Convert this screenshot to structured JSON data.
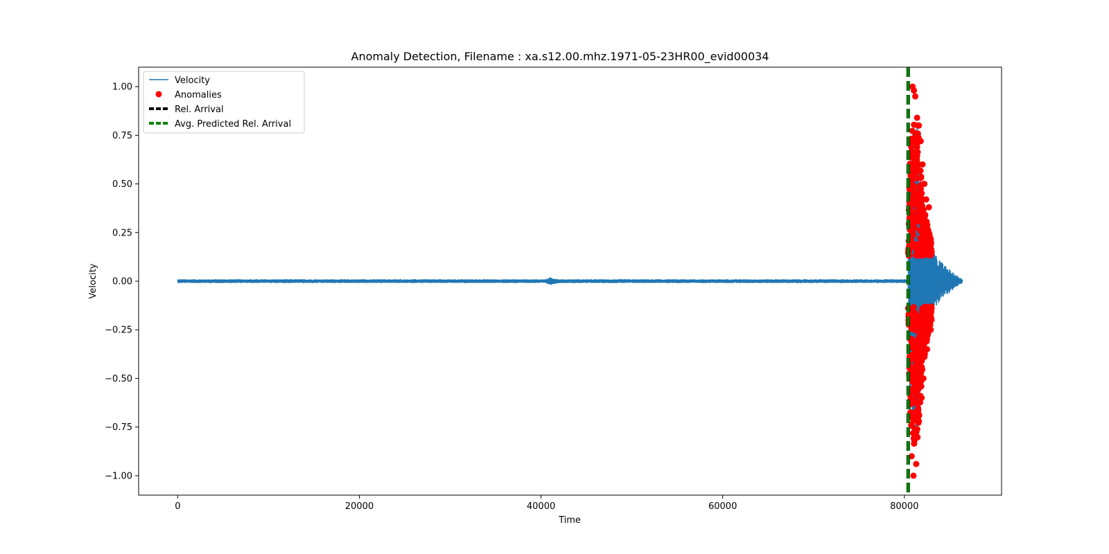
{
  "chart_data": {
    "type": "line",
    "title": "Anomaly Detection, Filename : xa.s12.00.mhz.1971-05-23HR00_evid00034",
    "xlabel": "Time",
    "ylabel": "Velocity",
    "xlim": [
      -4300,
      90700
    ],
    "ylim": [
      -1.1,
      1.1
    ],
    "xticks": [
      0,
      20000,
      40000,
      60000,
      80000
    ],
    "xtick_labels": [
      "0",
      "20000",
      "40000",
      "60000",
      "80000"
    ],
    "yticks": [
      -1.0,
      -0.75,
      -0.5,
      -0.25,
      0.0,
      0.25,
      0.5,
      0.75,
      1.0
    ],
    "ytick_labels": [
      "−1.00",
      "−0.75",
      "−0.50",
      "−0.25",
      "0.00",
      "0.25",
      "0.50",
      "0.75",
      "1.00"
    ],
    "grid": false,
    "legend_position": "top-left",
    "series": [
      {
        "name": "Velocity",
        "kind": "line",
        "color": "#1f77b4",
        "baseline": 0.0,
        "quiet_amplitude": 0.01,
        "envelope": [
          [
            0,
            0.01
          ],
          [
            40500,
            0.01
          ],
          [
            41000,
            0.02
          ],
          [
            41500,
            0.015
          ],
          [
            42000,
            0.01
          ],
          [
            80400,
            0.01
          ],
          [
            80600,
            0.7
          ],
          [
            81000,
            0.85
          ],
          [
            81500,
            0.8
          ],
          [
            82000,
            0.45
          ],
          [
            82500,
            0.3
          ],
          [
            83000,
            0.2
          ],
          [
            83500,
            0.13
          ],
          [
            84500,
            0.08
          ],
          [
            85500,
            0.04
          ],
          [
            86400,
            0.01
          ]
        ]
      },
      {
        "name": "Anomalies",
        "kind": "scatter",
        "color": "#ff0000",
        "threshold": 0.13,
        "x_range": [
          80400,
          83000
        ],
        "peak_values": [
          [
            80900,
            1.0
          ],
          [
            81050,
            0.98
          ],
          [
            81200,
            0.95
          ],
          [
            81400,
            0.84
          ],
          [
            81600,
            0.8
          ],
          [
            81800,
            0.72
          ],
          [
            82000,
            0.6
          ],
          [
            82200,
            0.5
          ],
          [
            82400,
            0.42
          ],
          [
            82700,
            0.38
          ],
          [
            81000,
            -1.0
          ],
          [
            80800,
            -0.9
          ],
          [
            81100,
            -0.82
          ],
          [
            81300,
            -0.94
          ],
          [
            81500,
            -0.7
          ],
          [
            81900,
            -0.6
          ],
          [
            82100,
            -0.5
          ],
          [
            82500,
            -0.35
          ],
          [
            82900,
            -0.25
          ]
        ]
      },
      {
        "name": "Rel. Arrival",
        "kind": "vline",
        "color": "#000000",
        "x": 80420
      },
      {
        "name": "Avg. Predicted Rel. Arrival",
        "kind": "vline",
        "color": "#008000",
        "x": 80420
      }
    ]
  }
}
